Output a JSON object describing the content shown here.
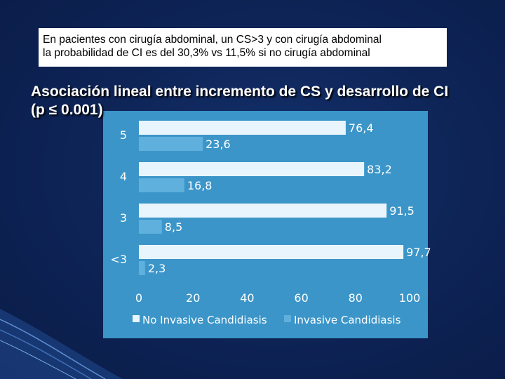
{
  "slide": {
    "note_lines": [
      "En pacientes con cirugía abdominal, un CS>3 y con cirugía abdominal",
      "la probabilidad de CI es del 30,3% vs 11,5% si no  cirugía abdominal"
    ],
    "heading_line1": "Asociación lineal entre incremento de CS y desarrollo de CI",
    "heading_line2": "(p ≤ 0.001)"
  },
  "chart_data": {
    "type": "bar",
    "orientation": "horizontal",
    "categories": [
      "5",
      "4",
      "3",
      "<3"
    ],
    "series": [
      {
        "name": "No Invasive Candidiasis",
        "values": [
          76.4,
          83.2,
          91.5,
          97.7
        ],
        "labels": [
          "76,4",
          "83,2",
          "91,5",
          "97,7"
        ],
        "color": "#e9f5fc"
      },
      {
        "name": "Invasive Candidiasis",
        "values": [
          23.6,
          16.8,
          8.5,
          2.3
        ],
        "labels": [
          "23,6",
          "16,8",
          "8,5",
          "2,3"
        ],
        "color": "#5fb0dc"
      }
    ],
    "xlim": [
      0,
      100
    ],
    "xticks": [
      "0",
      "20",
      "40",
      "60",
      "80",
      "100"
    ],
    "legend_position": "bottom",
    "grid": false
  },
  "colors": {
    "background": "#0c1f4f",
    "panel": "#3b95c8",
    "axis_text": "#ffffff"
  }
}
